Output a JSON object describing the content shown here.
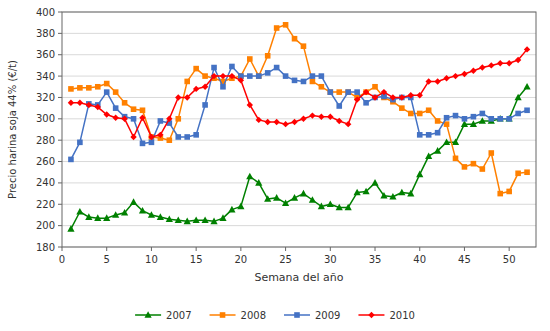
{
  "chart_data": {
    "type": "line",
    "xlabel": "Semana del año",
    "ylabel": "Precio harina soja 44% (€/t)",
    "xlim": [
      0,
      53
    ],
    "ylim": [
      180,
      400
    ],
    "xticks": [
      0,
      5,
      10,
      15,
      20,
      25,
      30,
      35,
      40,
      45,
      50
    ],
    "yticks": [
      180,
      200,
      220,
      240,
      260,
      280,
      300,
      320,
      340,
      360,
      380,
      400
    ],
    "grid": "y",
    "legend": "bottom",
    "x": [
      1,
      2,
      3,
      4,
      5,
      6,
      7,
      8,
      9,
      10,
      11,
      12,
      13,
      14,
      15,
      16,
      17,
      18,
      19,
      20,
      21,
      22,
      23,
      24,
      25,
      26,
      27,
      28,
      29,
      30,
      31,
      32,
      33,
      34,
      35,
      36,
      37,
      38,
      39,
      40,
      41,
      42,
      43,
      44,
      45,
      46,
      47,
      48,
      49,
      50,
      51,
      52
    ],
    "series": [
      {
        "name": "2007",
        "color": "#008000",
        "marker": "triangle",
        "values": [
          197,
          213,
          208,
          207,
          207,
          210,
          212,
          222,
          214,
          210,
          208,
          206,
          205,
          204,
          205,
          205,
          204,
          207,
          215,
          218,
          246,
          240,
          225,
          226,
          221,
          226,
          230,
          224,
          218,
          220,
          217,
          217,
          231,
          232,
          240,
          228,
          227,
          231,
          230,
          248,
          265,
          270,
          278,
          278,
          295,
          295,
          298,
          298,
          300,
          300,
          320,
          330
        ]
      },
      {
        "name": "2008",
        "color": "#FF8000",
        "marker": "square",
        "values": [
          328,
          329,
          329,
          330,
          333,
          325,
          315,
          309,
          308,
          283,
          282,
          280,
          300,
          335,
          347,
          340,
          338,
          335,
          338,
          340,
          356,
          340,
          359,
          385,
          388,
          375,
          368,
          335,
          330,
          325,
          325,
          325,
          320,
          325,
          330,
          320,
          316,
          310,
          305,
          305,
          308,
          298,
          295,
          263,
          255,
          258,
          253,
          268,
          230,
          232,
          249,
          250
        ]
      },
      {
        "name": "2009",
        "color": "#4472C4",
        "marker": "square",
        "values": [
          262,
          278,
          314,
          313,
          325,
          310,
          302,
          300,
          277,
          278,
          298,
          296,
          283,
          283,
          285,
          313,
          348,
          330,
          349,
          340,
          340,
          340,
          343,
          348,
          340,
          336,
          335,
          340,
          340,
          325,
          312,
          325,
          325,
          315,
          320,
          321,
          318,
          320,
          320,
          285,
          285,
          287,
          301,
          303,
          300,
          302,
          305,
          300,
          300,
          300,
          305,
          308
        ]
      },
      {
        "name": "2010",
        "color": "#FF0000",
        "marker": "diamond",
        "values": [
          315,
          315,
          313,
          311,
          304,
          301,
          300,
          283,
          301,
          283,
          285,
          300,
          320,
          320,
          328,
          330,
          340,
          340,
          340,
          336,
          313,
          299,
          297,
          297,
          295,
          297,
          300,
          303,
          302,
          302,
          298,
          295,
          318,
          325,
          320,
          325,
          320,
          320,
          322,
          322,
          335,
          335,
          338,
          340,
          342,
          345,
          348,
          350,
          352,
          352,
          355,
          365
        ]
      }
    ]
  }
}
